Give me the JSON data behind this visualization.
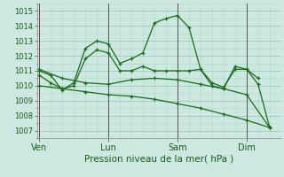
{
  "background_color": "#cce8e0",
  "line_color": "#1a6b1a",
  "grid_major_color": "#a0c8b8",
  "grid_minor_color": "#b0d8c8",
  "vline_color": "#555555",
  "xlabel": "Pression niveau de la mer( hPa )",
  "ylim": [
    1006.5,
    1015.5
  ],
  "yticks": [
    1007,
    1008,
    1009,
    1010,
    1011,
    1012,
    1013,
    1014,
    1015
  ],
  "xtick_labels": [
    "Ven",
    "Lun",
    "Sam",
    "Dim"
  ],
  "xtick_positions": [
    0,
    3,
    6,
    9
  ],
  "xlim": [
    -0.1,
    10.5
  ],
  "vlines": [
    0,
    3,
    6,
    9
  ],
  "series": [
    {
      "x": [
        0,
        0.5,
        1,
        1.5,
        2,
        2.5,
        3,
        3.5,
        4,
        4.5,
        5,
        5.5,
        6,
        6.5,
        7,
        7.5,
        8,
        8.5,
        9,
        9.5
      ],
      "y": [
        1011.0,
        1010.7,
        1009.7,
        1010.2,
        1012.5,
        1013.0,
        1012.8,
        1011.5,
        1011.8,
        1012.2,
        1014.2,
        1014.5,
        1014.7,
        1013.9,
        1011.1,
        1010.0,
        1009.8,
        1011.3,
        1011.1,
        1010.5
      ]
    },
    {
      "x": [
        0,
        0.5,
        1,
        1.5,
        2,
        2.5,
        3,
        3.5,
        4,
        4.5,
        5,
        5.5,
        6,
        6.5,
        7,
        7.5,
        8,
        8.5,
        9,
        9.5,
        10
      ],
      "y": [
        1010.7,
        1010.2,
        1009.8,
        1010.0,
        1011.8,
        1012.4,
        1012.2,
        1011.0,
        1011.0,
        1011.3,
        1011.0,
        1011.0,
        1011.0,
        1011.0,
        1011.1,
        1010.2,
        1009.9,
        1011.1,
        1011.1,
        1010.1,
        1007.2
      ]
    },
    {
      "x": [
        0,
        1,
        2,
        3,
        4,
        5,
        6,
        7,
        8,
        9,
        10
      ],
      "y": [
        1011.1,
        1010.5,
        1010.2,
        1010.1,
        1010.4,
        1010.5,
        1010.4,
        1010.1,
        1009.8,
        1009.4,
        1007.2
      ]
    },
    {
      "x": [
        0,
        1,
        2,
        3,
        4,
        5,
        6,
        7,
        8,
        9,
        10
      ],
      "y": [
        1010.0,
        1009.8,
        1009.6,
        1009.4,
        1009.3,
        1009.1,
        1008.8,
        1008.5,
        1008.1,
        1007.7,
        1007.2
      ]
    }
  ]
}
